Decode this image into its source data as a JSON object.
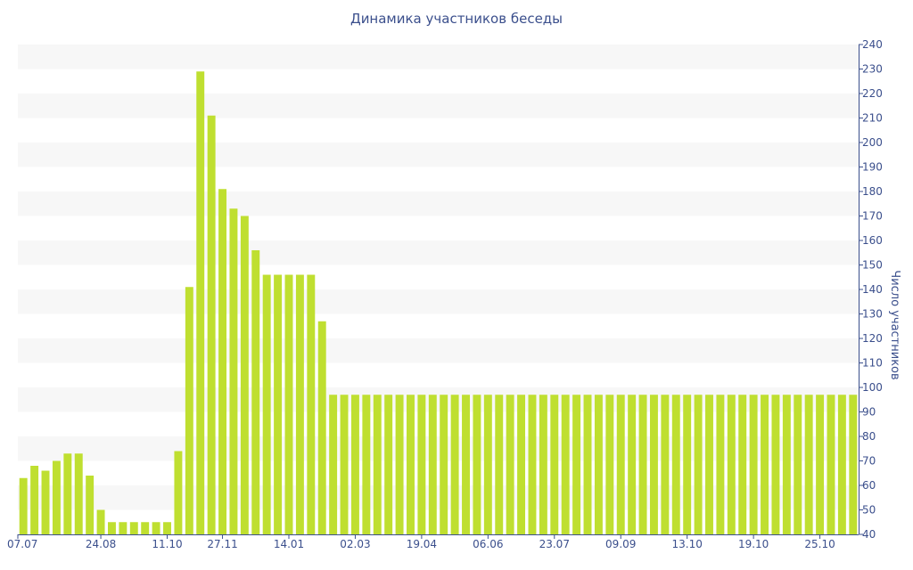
{
  "chart_data": {
    "type": "bar",
    "title": "Динамика участников беседы",
    "xlabel": "",
    "ylabel": "Число участников",
    "ylim": [
      40,
      240
    ],
    "y_ticks": [
      40,
      50,
      60,
      70,
      80,
      90,
      100,
      110,
      120,
      130,
      140,
      150,
      160,
      170,
      180,
      190,
      200,
      210,
      220,
      230,
      240
    ],
    "y_axis_side": "right",
    "x_tick_labels": [
      "07.07",
      "24.08",
      "11.10",
      "27.11",
      "14.01",
      "02.03",
      "19.04",
      "06.06",
      "23.07",
      "09.09",
      "13.10",
      "19.10",
      "25.10"
    ],
    "x_tick_indices": [
      0,
      7,
      13,
      18,
      24,
      30,
      36,
      42,
      48,
      54,
      60,
      66,
      72
    ],
    "values": [
      63,
      68,
      66,
      70,
      73,
      73,
      64,
      50,
      45,
      45,
      45,
      45,
      45,
      45,
      74,
      141,
      229,
      211,
      181,
      173,
      170,
      156,
      146,
      146,
      146,
      146,
      146,
      127,
      97,
      97,
      97,
      97,
      97,
      97,
      97,
      97,
      97,
      97,
      97,
      97,
      97,
      97,
      97,
      97,
      97,
      97,
      97,
      97,
      97,
      97,
      97,
      97,
      97,
      97,
      97,
      97,
      97,
      97,
      97,
      97,
      97,
      97,
      97,
      97,
      97,
      97,
      97,
      97,
      97,
      97,
      97,
      97,
      97,
      97,
      97,
      97
    ],
    "grid": true,
    "colors": {
      "bar": "#bfdf30",
      "band": "#f7f7f7",
      "text": "#3b4f8c",
      "axis": "#3b4f8c"
    }
  }
}
